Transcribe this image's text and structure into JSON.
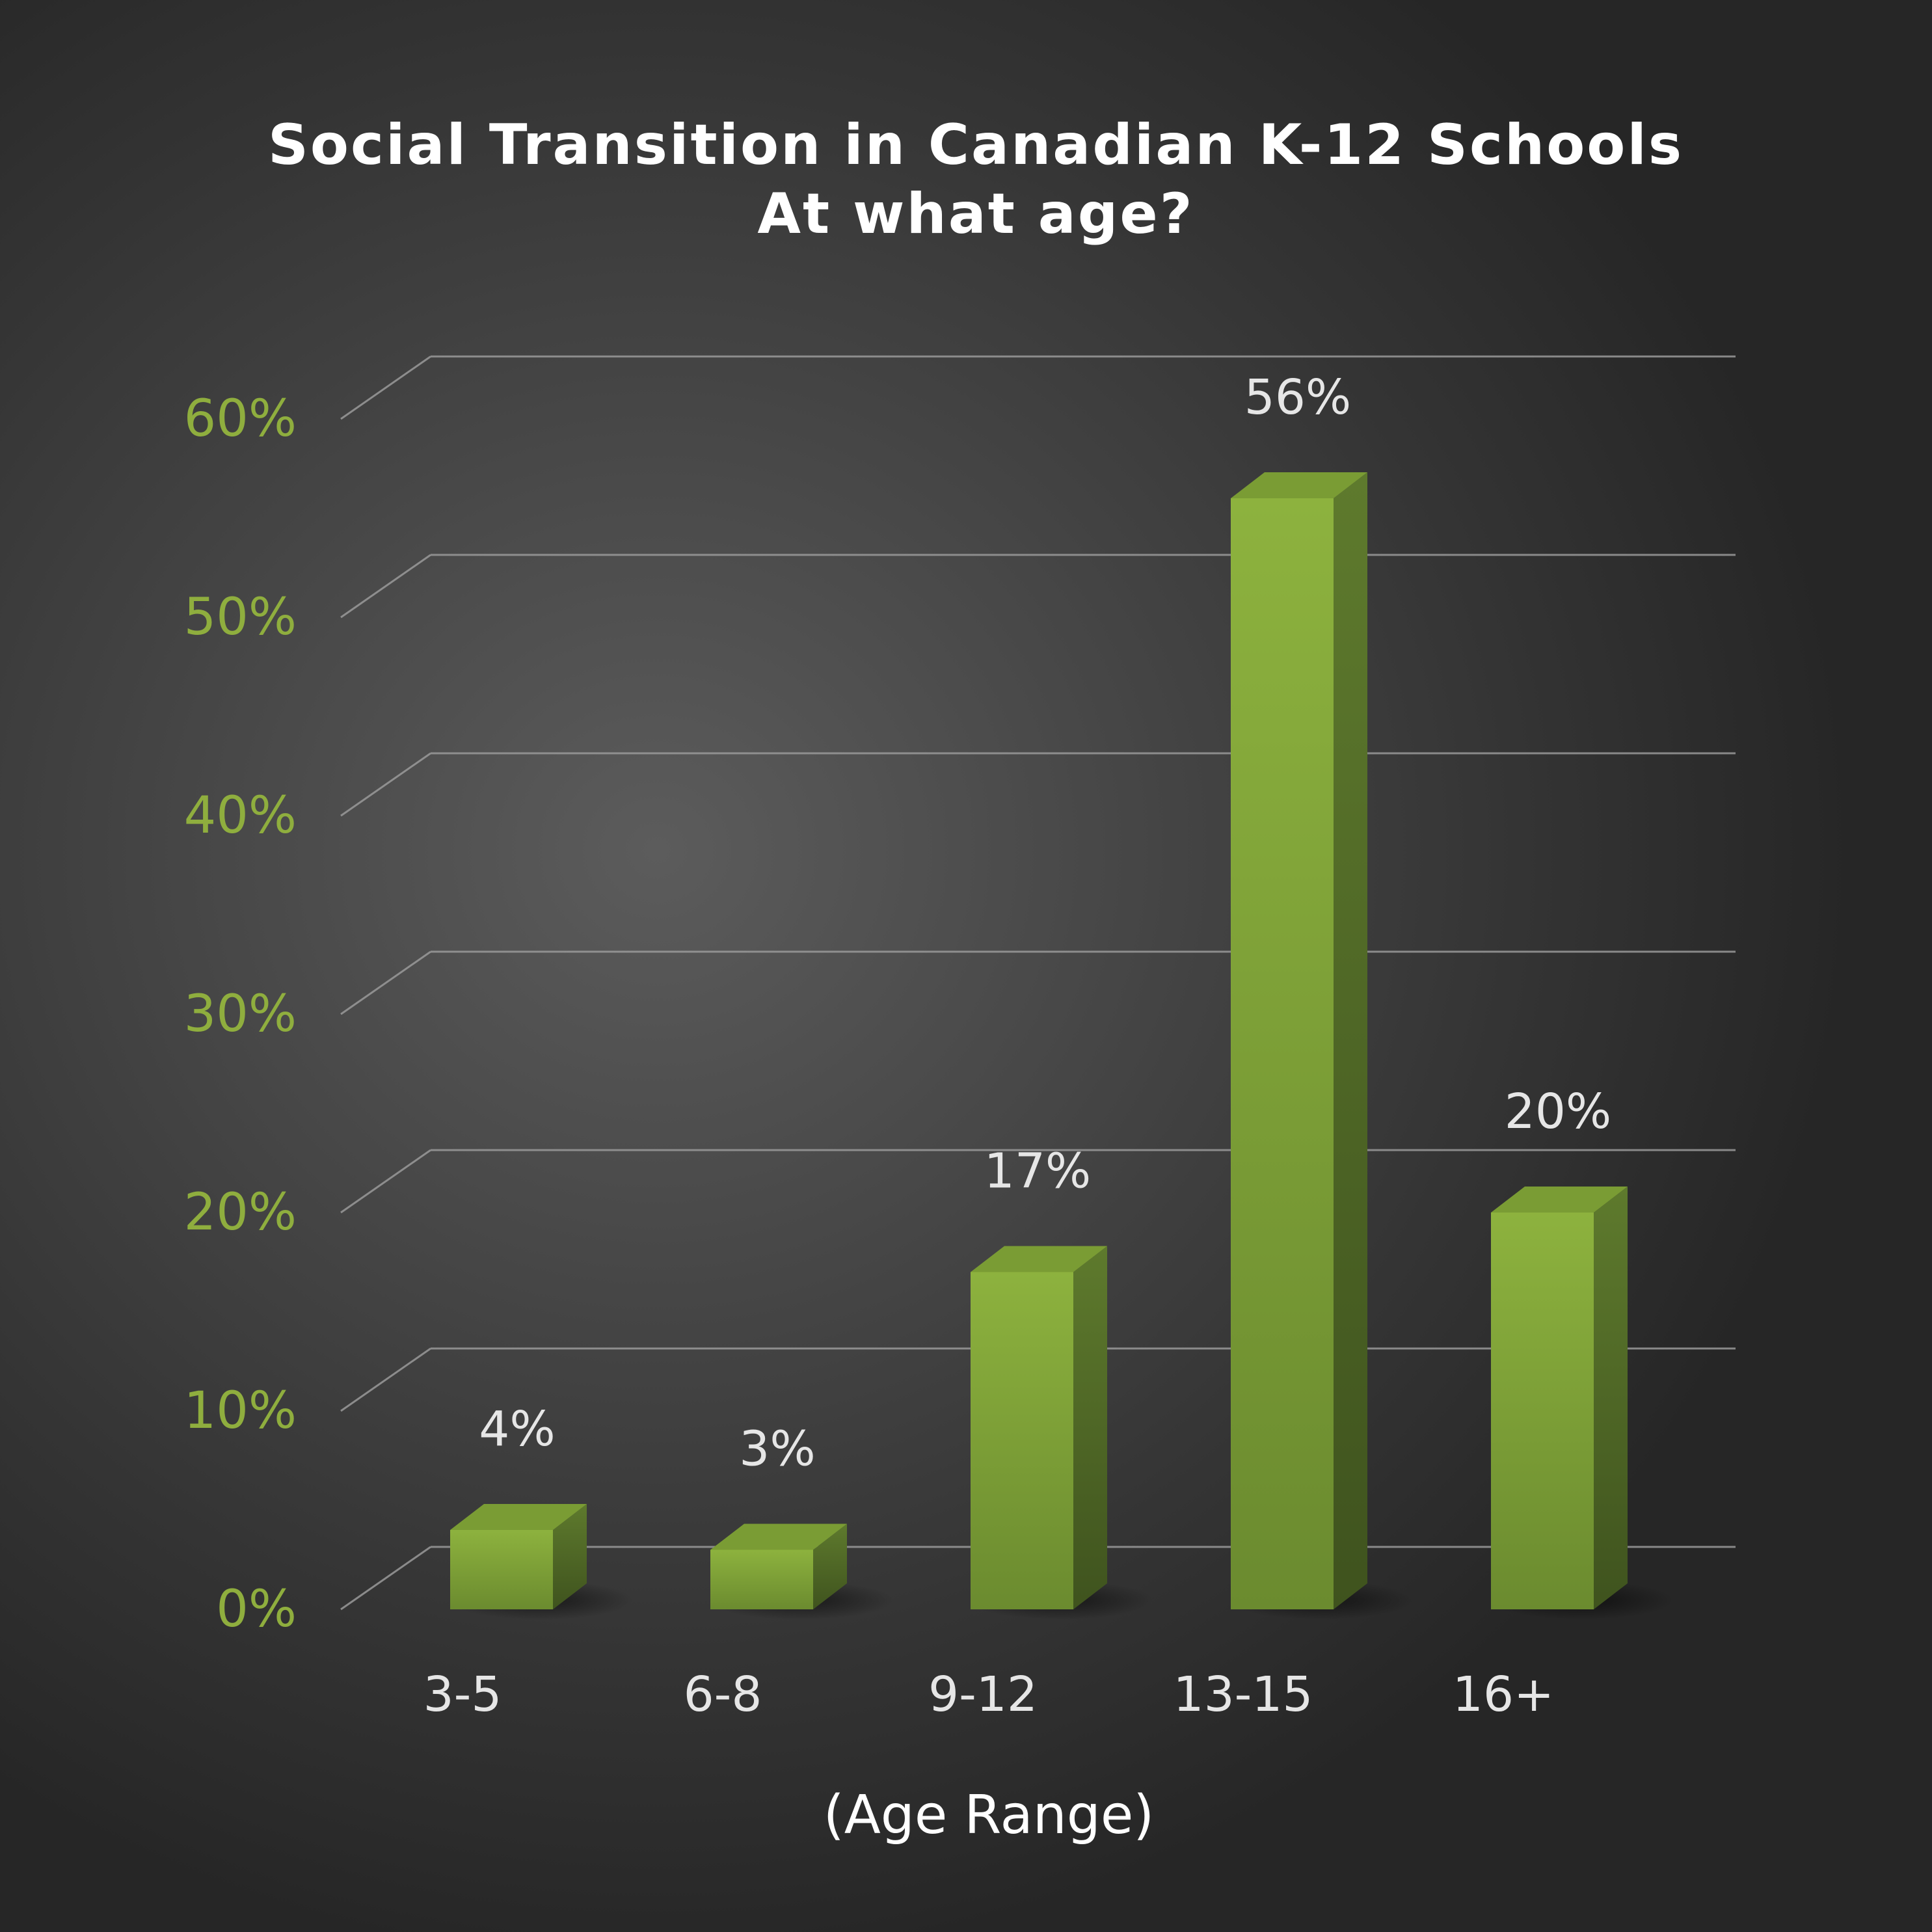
{
  "chart_data": {
    "type": "bar",
    "title": "Social Transition in Canadian K-12 Schools",
    "subtitle": "At what age?",
    "xlabel": "(Age Range)",
    "ylabel": "",
    "categories": [
      "3-5",
      "6-8",
      "9-12",
      "13-15",
      "16+"
    ],
    "values": [
      4,
      3,
      17,
      56,
      20
    ],
    "data_labels": [
      "4%",
      "3%",
      "17%",
      "56%",
      "20%"
    ],
    "yticks": [
      0,
      10,
      20,
      30,
      40,
      50,
      60
    ],
    "ytick_labels": [
      "0%",
      "10%",
      "20%",
      "30%",
      "40%",
      "50%",
      "60%"
    ],
    "ylim": [
      0,
      60
    ],
    "grid": true,
    "three_d": true,
    "legend": "none"
  },
  "colors": {
    "bar_front": "#8db23e",
    "bar_side": "#56702a",
    "bar_top": "#7a9c34",
    "tick_label": "#8fae3e",
    "text": "#e6e6e6",
    "gridline": "#9a9a9a"
  }
}
